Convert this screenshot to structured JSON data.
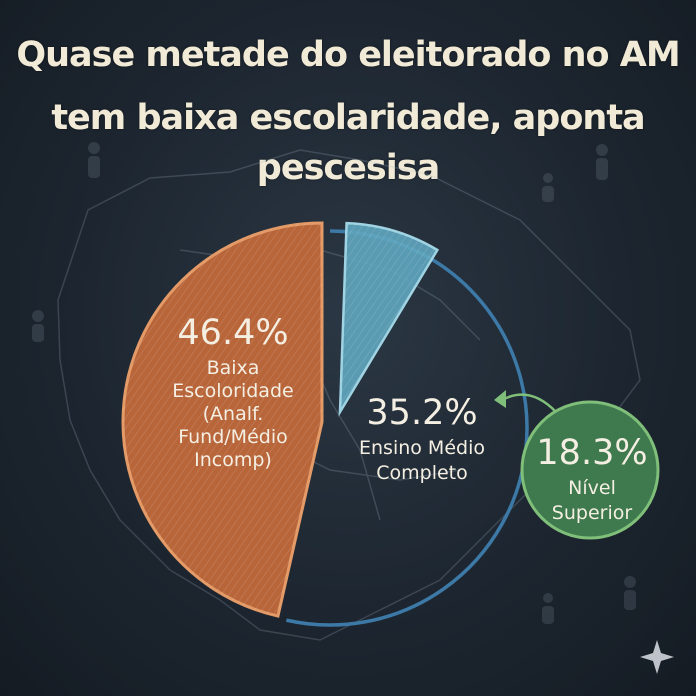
{
  "title_lines": [
    "Quase metade do eleitorado no AM",
    "tem baixa escolaridade, aponta pescesisa"
  ],
  "chart_data": {
    "type": "pie",
    "title": "Quase metade do eleitorado no AM tem baixa escolaridade, aponta pescesisa",
    "slices": [
      {
        "value": 46.4,
        "percent_label": "46.4%",
        "label_lines": [
          "Baixa",
          "Escoloridade",
          "(Analf.",
          "Fund/Médio",
          "Incomp)"
        ],
        "color": "#b8653a"
      },
      {
        "value": 35.2,
        "percent_label": "35.2%",
        "label_lines": [
          "Ensino Médio",
          "Completo"
        ],
        "color": "#3d79a6"
      },
      {
        "value": 18.3,
        "percent_label": "18.3%",
        "label_lines": [
          "Nível",
          "Superior"
        ],
        "color": "#3f7a4e"
      }
    ]
  },
  "colors": {
    "background": "#1d2630",
    "title_text": "#f1ead6",
    "orange_slice": "#b8653a",
    "blue_outline": "#3d79a6",
    "cyan_wedge": "#5fa6bf",
    "green_circle": "#2f6b40",
    "green_border": "#7fbf7a"
  }
}
